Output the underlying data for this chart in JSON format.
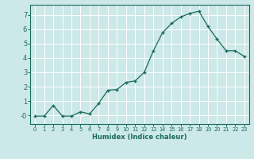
{
  "x": [
    0,
    1,
    2,
    3,
    4,
    5,
    6,
    7,
    8,
    9,
    10,
    11,
    12,
    13,
    14,
    15,
    16,
    17,
    18,
    19,
    20,
    21,
    22,
    23
  ],
  "y": [
    -0.05,
    -0.05,
    0.7,
    -0.05,
    -0.05,
    0.25,
    0.1,
    0.85,
    1.75,
    1.8,
    2.3,
    2.4,
    3.0,
    4.5,
    5.75,
    6.4,
    6.85,
    7.1,
    7.25,
    6.2,
    5.3,
    4.5,
    4.5,
    4.1
  ],
  "xlabel": "Humidex (Indice chaleur)",
  "line_color": "#1a6b5a",
  "marker_color": "#1a6b5a",
  "bg_color": "#cce8e8",
  "grid_color": "#ffffff",
  "ylim": [
    -0.6,
    7.7
  ],
  "xlim": [
    -0.5,
    23.5
  ],
  "yticks": [
    0,
    1,
    2,
    3,
    4,
    5,
    6,
    7
  ],
  "ytick_labels": [
    "-0",
    "1",
    "2",
    "3",
    "4",
    "5",
    "6",
    "7"
  ],
  "xticks": [
    0,
    1,
    2,
    3,
    4,
    5,
    6,
    7,
    8,
    9,
    10,
    11,
    12,
    13,
    14,
    15,
    16,
    17,
    18,
    19,
    20,
    21,
    22,
    23
  ]
}
